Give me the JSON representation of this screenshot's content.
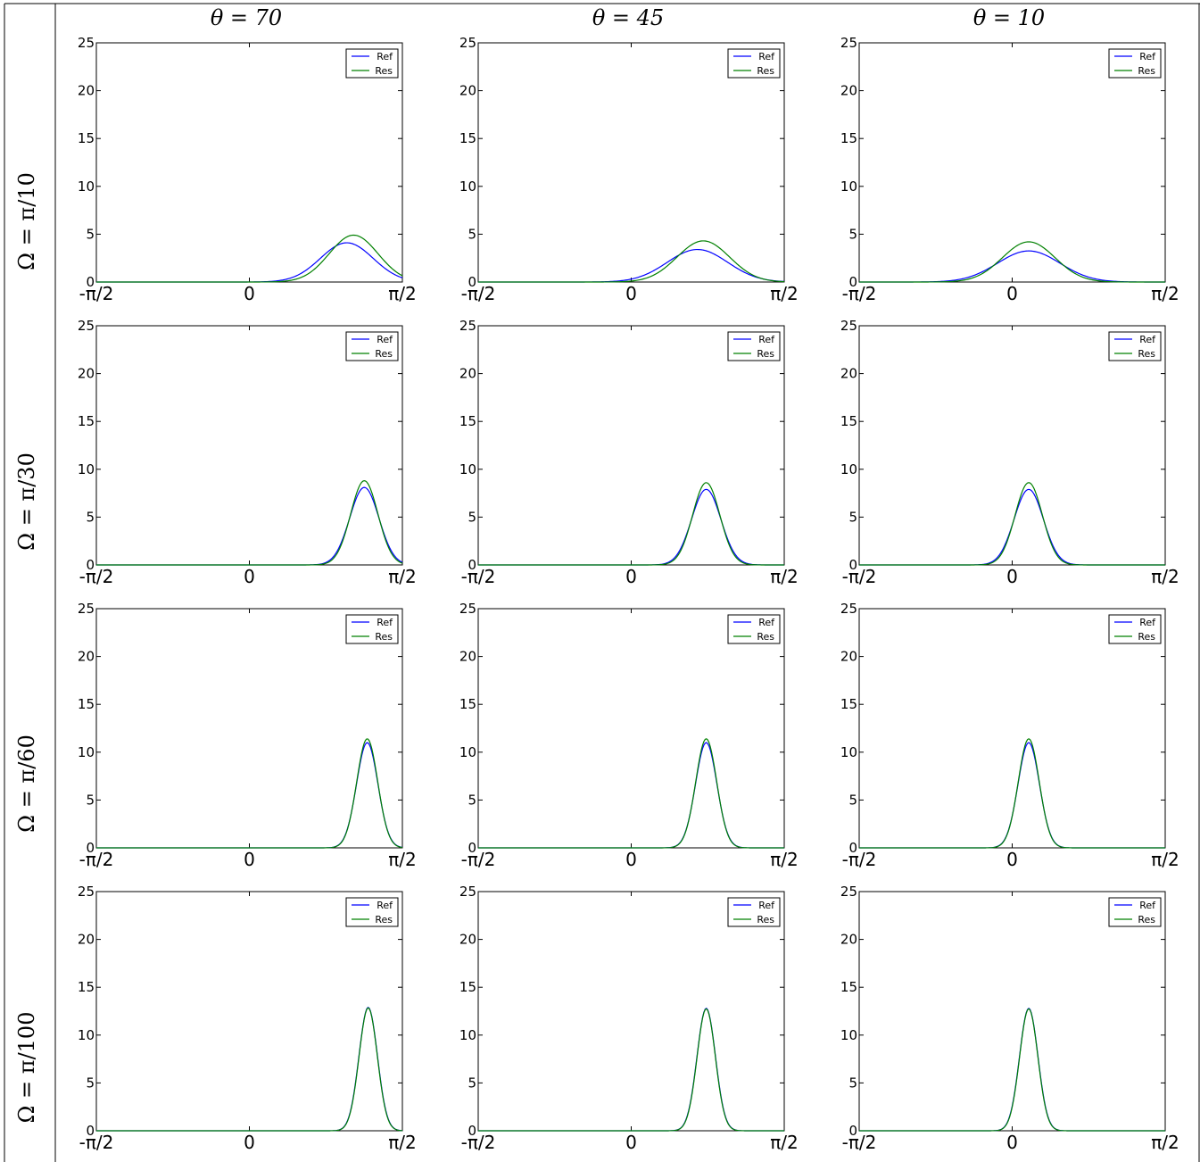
{
  "column_titles": [
    "θ = 70",
    "θ = 45",
    "θ = 10"
  ],
  "row_labels": [
    "Ω = π/10",
    "Ω = π/30",
    "Ω = π/60",
    "Ω = π/100"
  ],
  "colors": {
    "Ref": "#0000ff",
    "Res": "#008000",
    "frame": "#000000"
  },
  "chart_data": [
    {
      "type": "line",
      "row": 0,
      "col": 0,
      "ylim": [
        0,
        25
      ],
      "xlim": [
        "-π/2",
        "π/2"
      ],
      "xtick_labels": [
        "-π/2",
        "0",
        "π/2"
      ],
      "ytick_labels": [
        "0",
        "5",
        "10",
        "15",
        "20",
        "25"
      ],
      "series": [
        {
          "name": "Ref",
          "center": 1.0,
          "sigma": 0.27,
          "peak": 4.1
        },
        {
          "name": "Res",
          "center": 1.07,
          "sigma": 0.25,
          "peak": 4.9
        }
      ],
      "legend": "top-right"
    },
    {
      "type": "line",
      "row": 0,
      "col": 1,
      "ylim": [
        0,
        25
      ],
      "xlim": [
        "-π/2",
        "π/2"
      ],
      "xtick_labels": [
        "-π/2",
        "0",
        "π/2"
      ],
      "ytick_labels": [
        "0",
        "5",
        "10",
        "15",
        "20",
        "25"
      ],
      "series": [
        {
          "name": "Ref",
          "center": 0.68,
          "sigma": 0.31,
          "peak": 3.4
        },
        {
          "name": "Res",
          "center": 0.74,
          "sigma": 0.27,
          "peak": 4.3
        }
      ],
      "legend": "top-right"
    },
    {
      "type": "line",
      "row": 0,
      "col": 2,
      "ylim": [
        0,
        25
      ],
      "xlim": [
        "-π/2",
        "π/2"
      ],
      "xtick_labels": [
        "-π/2",
        "0",
        "π/2"
      ],
      "ytick_labels": [
        "0",
        "5",
        "10",
        "15",
        "20",
        "25"
      ],
      "series": [
        {
          "name": "Ref",
          "center": 0.17,
          "sigma": 0.32,
          "peak": 3.25
        },
        {
          "name": "Res",
          "center": 0.17,
          "sigma": 0.27,
          "peak": 4.2
        }
      ],
      "legend": "top-right"
    },
    {
      "type": "line",
      "row": 1,
      "col": 0,
      "ylim": [
        0,
        25
      ],
      "xlim": [
        "-π/2",
        "π/2"
      ],
      "xtick_labels": [
        "-π/2",
        "0",
        "π/2"
      ],
      "ytick_labels": [
        "0",
        "5",
        "10",
        "15",
        "20",
        "25"
      ],
      "series": [
        {
          "name": "Ref",
          "center": 1.18,
          "sigma": 0.15,
          "peak": 8.1
        },
        {
          "name": "Res",
          "center": 1.18,
          "sigma": 0.14,
          "peak": 8.8
        }
      ],
      "legend": "top-right"
    },
    {
      "type": "line",
      "row": 1,
      "col": 1,
      "ylim": [
        0,
        25
      ],
      "xlim": [
        "-π/2",
        "π/2"
      ],
      "xtick_labels": [
        "-π/2",
        "0",
        "π/2"
      ],
      "ytick_labels": [
        "0",
        "5",
        "10",
        "15",
        "20",
        "25"
      ],
      "series": [
        {
          "name": "Ref",
          "center": 0.77,
          "sigma": 0.15,
          "peak": 7.9
        },
        {
          "name": "Res",
          "center": 0.77,
          "sigma": 0.14,
          "peak": 8.6
        }
      ],
      "legend": "top-right"
    },
    {
      "type": "line",
      "row": 1,
      "col": 2,
      "ylim": [
        0,
        25
      ],
      "xlim": [
        "-π/2",
        "π/2"
      ],
      "xtick_labels": [
        "-π/2",
        "0",
        "π/2"
      ],
      "ytick_labels": [
        "0",
        "5",
        "10",
        "15",
        "20",
        "25"
      ],
      "series": [
        {
          "name": "Ref",
          "center": 0.17,
          "sigma": 0.15,
          "peak": 7.9
        },
        {
          "name": "Res",
          "center": 0.17,
          "sigma": 0.14,
          "peak": 8.6
        }
      ],
      "legend": "top-right"
    },
    {
      "type": "line",
      "row": 2,
      "col": 0,
      "ylim": [
        0,
        25
      ],
      "xlim": [
        "-π/2",
        "π/2"
      ],
      "xtick_labels": [
        "-π/2",
        "0",
        "π/2"
      ],
      "ytick_labels": [
        "0",
        "5",
        "10",
        "15",
        "20",
        "25"
      ],
      "series": [
        {
          "name": "Ref",
          "center": 1.21,
          "sigma": 0.11,
          "peak": 11.0
        },
        {
          "name": "Res",
          "center": 1.21,
          "sigma": 0.108,
          "peak": 11.4
        }
      ],
      "legend": "top-right"
    },
    {
      "type": "line",
      "row": 2,
      "col": 1,
      "ylim": [
        0,
        25
      ],
      "xlim": [
        "-π/2",
        "π/2"
      ],
      "xtick_labels": [
        "-π/2",
        "0",
        "π/2"
      ],
      "ytick_labels": [
        "0",
        "5",
        "10",
        "15",
        "20",
        "25"
      ],
      "series": [
        {
          "name": "Ref",
          "center": 0.77,
          "sigma": 0.11,
          "peak": 11.0
        },
        {
          "name": "Res",
          "center": 0.77,
          "sigma": 0.108,
          "peak": 11.4
        }
      ],
      "legend": "top-right"
    },
    {
      "type": "line",
      "row": 2,
      "col": 2,
      "ylim": [
        0,
        25
      ],
      "xlim": [
        "-π/2",
        "π/2"
      ],
      "xtick_labels": [
        "-π/2",
        "0",
        "π/2"
      ],
      "ytick_labels": [
        "0",
        "5",
        "10",
        "15",
        "20",
        "25"
      ],
      "series": [
        {
          "name": "Ref",
          "center": 0.17,
          "sigma": 0.11,
          "peak": 11.0
        },
        {
          "name": "Res",
          "center": 0.17,
          "sigma": 0.108,
          "peak": 11.4
        }
      ],
      "legend": "top-right"
    },
    {
      "type": "line",
      "row": 3,
      "col": 0,
      "ylim": [
        0,
        25
      ],
      "xlim": [
        "-π/2",
        "π/2"
      ],
      "xtick_labels": [
        "-π/2",
        "0",
        "π/2"
      ],
      "ytick_labels": [
        "0",
        "5",
        "10",
        "15",
        "20",
        "25"
      ],
      "series": [
        {
          "name": "Ref",
          "center": 1.22,
          "sigma": 0.095,
          "peak": 12.9
        },
        {
          "name": "Res",
          "center": 1.22,
          "sigma": 0.094,
          "peak": 12.85
        }
      ],
      "legend": "top-right"
    },
    {
      "type": "line",
      "row": 3,
      "col": 1,
      "ylim": [
        0,
        25
      ],
      "xlim": [
        "-π/2",
        "π/2"
      ],
      "xtick_labels": [
        "-π/2",
        "0",
        "π/2"
      ],
      "ytick_labels": [
        "0",
        "5",
        "10",
        "15",
        "20",
        "25"
      ],
      "series": [
        {
          "name": "Ref",
          "center": 0.77,
          "sigma": 0.095,
          "peak": 12.8
        },
        {
          "name": "Res",
          "center": 0.77,
          "sigma": 0.094,
          "peak": 12.75
        }
      ],
      "legend": "top-right"
    },
    {
      "type": "line",
      "row": 3,
      "col": 2,
      "ylim": [
        0,
        25
      ],
      "xlim": [
        "-π/2",
        "π/2"
      ],
      "xtick_labels": [
        "-π/2",
        "0",
        "π/2"
      ],
      "ytick_labels": [
        "0",
        "5",
        "10",
        "15",
        "20",
        "25"
      ],
      "series": [
        {
          "name": "Ref",
          "center": 0.17,
          "sigma": 0.095,
          "peak": 12.8
        },
        {
          "name": "Res",
          "center": 0.17,
          "sigma": 0.094,
          "peak": 12.75
        }
      ],
      "legend": "top-right"
    }
  ]
}
